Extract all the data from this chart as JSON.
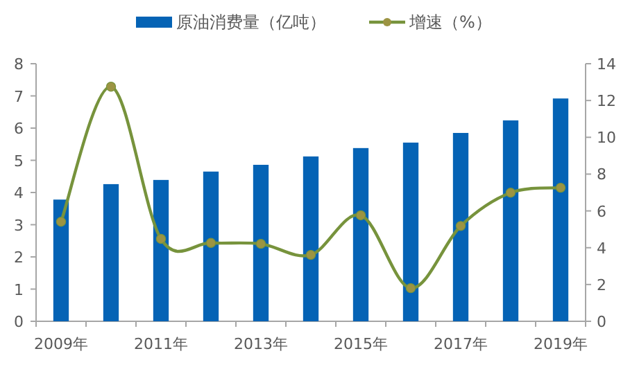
{
  "chart_data": {
    "type": "bar",
    "categories": [
      "2009年",
      null,
      "2011年",
      null,
      "2013年",
      null,
      "2015年",
      null,
      "2017年",
      null,
      "2019年"
    ],
    "series": [
      {
        "name": "原油消费量（亿吨）",
        "color": "#0563b5",
        "values": [
          3.78,
          4.26,
          4.39,
          4.65,
          4.86,
          5.12,
          5.38,
          5.55,
          5.85,
          6.24,
          6.92
        ]
      },
      {
        "name": "增速（%）",
        "type": "line",
        "axis": "y2",
        "color": "#77933c",
        "values": [
          5.41,
          12.75,
          4.48,
          4.26,
          4.21,
          3.61,
          5.76,
          1.8,
          5.18,
          6.99,
          7.26
        ]
      }
    ],
    "ylim": [
      0,
      8
    ],
    "yticks": [
      0,
      1,
      2,
      3,
      4,
      5,
      6,
      7,
      8
    ],
    "y2lim": [
      0,
      14
    ],
    "y2ticks": [
      0,
      2,
      4,
      6,
      8,
      10,
      12,
      14
    ],
    "marker": "circle",
    "legend": "top",
    "grid": false
  }
}
